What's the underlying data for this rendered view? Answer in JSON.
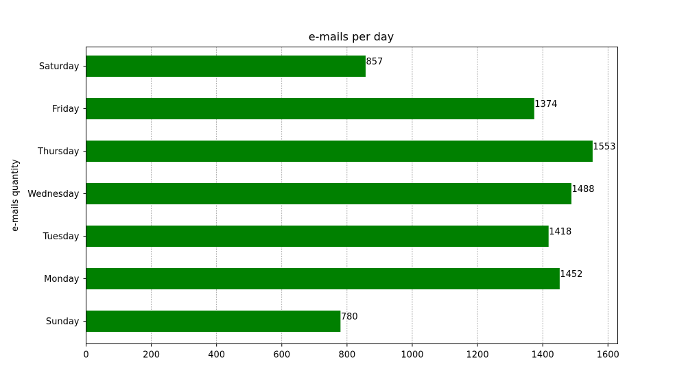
{
  "chart_data": {
    "type": "bar",
    "orientation": "horizontal",
    "title": "e-mails per day",
    "xlabel": "",
    "ylabel": "e-mails quantity",
    "categories": [
      "Sunday",
      "Monday",
      "Tuesday",
      "Wednesday",
      "Thursday",
      "Friday",
      "Saturday"
    ],
    "values": [
      780,
      1452,
      1418,
      1488,
      1553,
      1374,
      857
    ],
    "xlim": [
      0,
      1630
    ],
    "x_ticks": [
      0,
      200,
      400,
      600,
      800,
      1000,
      1200,
      1400,
      1600
    ],
    "grid": "x-dashed",
    "bar_color": "#008000",
    "show_data_labels": true
  }
}
